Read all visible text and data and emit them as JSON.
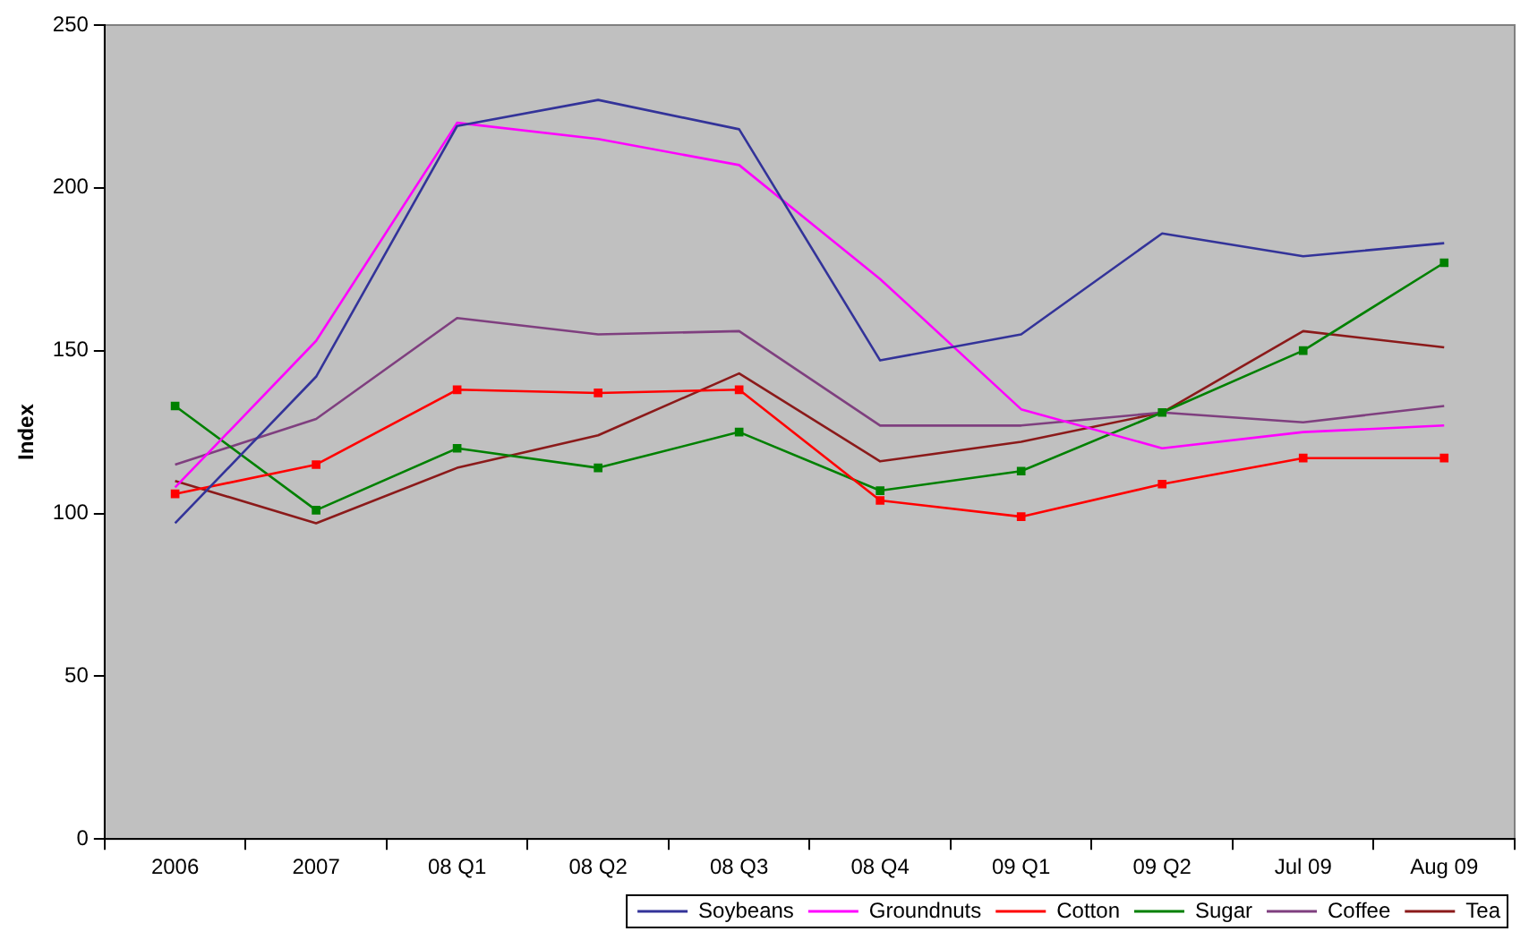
{
  "chart_data": {
    "type": "line",
    "ylabel": "Index",
    "categories": [
      "2006",
      "2007",
      "08 Q1",
      "08 Q2",
      "08 Q3",
      "08 Q4",
      "09 Q1",
      "09 Q2",
      "Jul 09",
      "Aug 09"
    ],
    "ylim": [
      0,
      250
    ],
    "yticks": [
      0,
      50,
      100,
      150,
      200,
      250
    ],
    "grid": false,
    "legend": "bottom right",
    "line_style": "solid",
    "series": [
      {
        "name": "Soybeans",
        "color": "#333399",
        "marker": "none",
        "values": [
          97,
          142,
          219,
          227,
          218,
          147,
          155,
          186,
          179,
          183
        ]
      },
      {
        "name": "Groundnuts",
        "color": "#ff00ff",
        "marker": "none",
        "values": [
          108,
          153,
          220,
          215,
          207,
          172,
          132,
          120,
          125,
          127
        ]
      },
      {
        "name": "Cotton",
        "color": "#ff0000",
        "marker": "square",
        "values": [
          106,
          115,
          138,
          137,
          138,
          104,
          99,
          109,
          117,
          117
        ]
      },
      {
        "name": "Sugar",
        "color": "#008000",
        "marker": "square",
        "values": [
          133,
          101,
          120,
          114,
          125,
          107,
          113,
          131,
          150,
          177
        ]
      },
      {
        "name": "Coffee",
        "color": "#7f3f7f",
        "marker": "none",
        "values": [
          115,
          129,
          160,
          155,
          156,
          127,
          127,
          131,
          128,
          133
        ]
      },
      {
        "name": "Tea",
        "color": "#8b1a1a",
        "marker": "none",
        "values": [
          110,
          97,
          114,
          124,
          143,
          116,
          122,
          131,
          156,
          151
        ]
      }
    ]
  }
}
